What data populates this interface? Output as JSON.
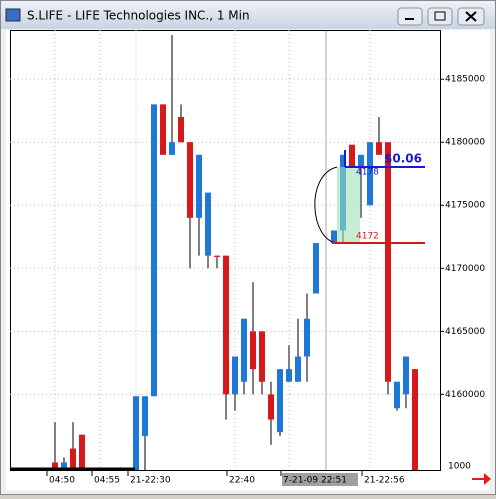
{
  "window_title": "S.LIFE - LIFE Technologies INC., 1 Min",
  "chart_data": {
    "type": "candlestick",
    "categories": [
      "04:50",
      null,
      null,
      null,
      null,
      "04:55",
      null,
      null,
      null,
      "21-22:30",
      null,
      null,
      null,
      null,
      null,
      null,
      null,
      null,
      null,
      null,
      "22:40",
      null,
      null,
      null,
      null,
      null,
      "7-21-09 22:51",
      null,
      null,
      null,
      null,
      null,
      null,
      null,
      null,
      "21-22:56",
      null,
      null,
      null,
      null,
      null
    ],
    "open": [
      4154600,
      4154000,
      4155700,
      4156800,
      null,
      null,
      null,
      null,
      null,
      4154000,
      4156700,
      4159850,
      4183000,
      4179000,
      4182000,
      4180000,
      4174000,
      4171000,
      4171000,
      4171000,
      4160000,
      4161000,
      4165000,
      4165000,
      4160000,
      4157000,
      4161000,
      4161000,
      4163000,
      4168000,
      null,
      4172000,
      4173000,
      4179800,
      4178000,
      4175000,
      4180000,
      4180000,
      4158900,
      4160000,
      4162000
    ],
    "high": [
      4157800,
      4155000,
      4157800,
      4156800,
      null,
      null,
      null,
      null,
      null,
      4159850,
      4159850,
      4183000,
      4183000,
      4188500,
      4183000,
      4180000,
      4179000,
      4176000,
      4171000,
      4171000,
      4163000,
      4166000,
      4168900,
      4165000,
      4161000,
      4162000,
      4163900,
      4166000,
      4168000,
      4172000,
      null,
      4173000,
      4179000,
      4179800,
      4179000,
      4180000,
      4182000,
      4180000,
      4161000,
      4163000,
      4162000
    ],
    "low": [
      4154000,
      4154000,
      4154000,
      4154000,
      null,
      null,
      null,
      null,
      null,
      4154000,
      4154000,
      4159850,
      4179000,
      4179000,
      4180000,
      4170000,
      4171000,
      4170000,
      4170000,
      4158000,
      4158700,
      4160000,
      4160000,
      4160000,
      4156000,
      4156700,
      4161000,
      4161000,
      4161000,
      4168000,
      null,
      4172000,
      4172000,
      4178000,
      4174000,
      4175000,
      4179000,
      4160000,
      4158700,
      4158900,
      4154000
    ],
    "close": [
      4154000,
      4154600,
      4154000,
      4154000,
      null,
      null,
      null,
      null,
      null,
      4159850,
      4159850,
      4183000,
      4179000,
      4180000,
      4180000,
      4174000,
      4179000,
      4176000,
      4170900,
      4160000,
      4163000,
      4166000,
      4162000,
      4161000,
      4158000,
      4162000,
      4162000,
      4163000,
      4166000,
      4172000,
      null,
      4173000,
      4179000,
      4178000,
      4179000,
      4180000,
      4179000,
      4161000,
      4161000,
      4163000,
      4154000
    ],
    "up_color": "#1e78d7",
    "down_color": "#d7191c",
    "ylim": [
      4154000,
      4188900
    ],
    "yticks": [
      4160000,
      4165000,
      4170000,
      4175000,
      4180000,
      4185000
    ],
    "grid": true,
    "volume_label": "1000",
    "annotations": [
      "$0.06",
      "4178",
      "4172"
    ]
  }
}
